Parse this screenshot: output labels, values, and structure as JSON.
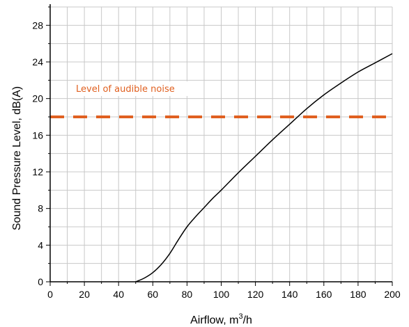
{
  "chart_data": {
    "type": "line",
    "title": "",
    "xlabel": "Airflow, m",
    "xlabel_sup": "3",
    "xlabel_suffix": "/h",
    "ylabel": "Sound Pressure Level, dB(A)",
    "xlim": [
      0,
      200
    ],
    "ylim": [
      0,
      30
    ],
    "x_ticks": [
      0,
      20,
      40,
      60,
      80,
      100,
      120,
      140,
      160,
      180,
      200
    ],
    "y_ticks": [
      0,
      4,
      8,
      12,
      16,
      20,
      24,
      28
    ],
    "x_grid_step": 10,
    "y_grid_step": 2,
    "grid": true,
    "series": [
      {
        "color": "#000000",
        "x": [
          50,
          55,
          60,
          65,
          70,
          75,
          80,
          85,
          90,
          95,
          100,
          110,
          120,
          130,
          140,
          150,
          160,
          170,
          180,
          190,
          200
        ],
        "y": [
          0,
          0.4,
          1.0,
          1.9,
          3.1,
          4.6,
          6.0,
          7.1,
          8.1,
          9.1,
          10.0,
          11.9,
          13.7,
          15.5,
          17.2,
          18.9,
          20.4,
          21.7,
          22.9,
          23.9,
          24.9
        ]
      }
    ],
    "reference_line": {
      "y": 18,
      "color": "#e06020",
      "style": "dashed"
    },
    "annotation": {
      "text": "Level of audible noise",
      "color": "#e06020"
    }
  }
}
